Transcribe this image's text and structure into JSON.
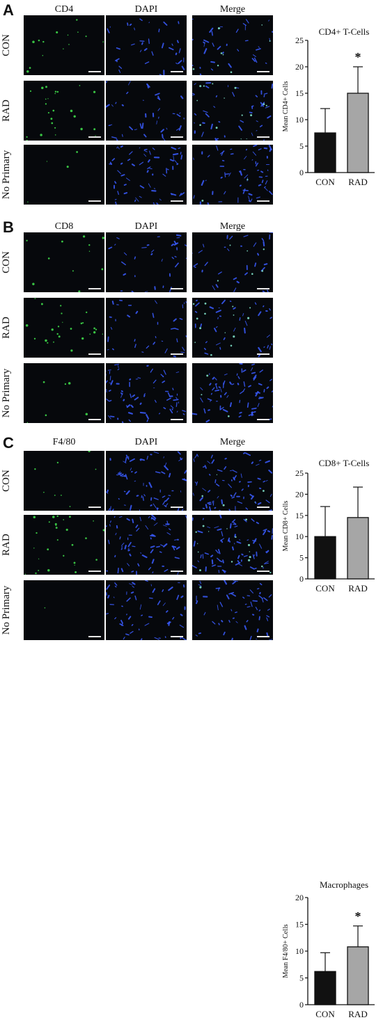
{
  "panels": [
    {
      "id": "A",
      "label": "A",
      "columns": [
        "CD4",
        "DAPI",
        "Merge"
      ],
      "rows": [
        "CON",
        "RAD",
        "No Primary"
      ],
      "stain_color": "#3fd94a",
      "dapi_color": "#3a5cff",
      "tile_density": [
        [
          0.2,
          0.5,
          0.5
        ],
        [
          0.35,
          0.55,
          0.6
        ],
        [
          0.05,
          0.85,
          0.85
        ]
      ],
      "chart": {
        "title": "CD4+ T-Cells",
        "ylabel": "Mean CD4+ Cells",
        "categories": [
          "CON",
          "RAD"
        ],
        "yticks": [
          0,
          5,
          10,
          15,
          20,
          25
        ],
        "significance": "*"
      }
    },
    {
      "id": "B",
      "label": "B",
      "columns": [
        "CD8",
        "DAPI",
        "Merge"
      ],
      "rows": [
        "CON",
        "RAD",
        "No Primary"
      ],
      "stain_color": "#3fd94a",
      "dapi_color": "#3a5cff",
      "tile_density": [
        [
          0.15,
          0.45,
          0.45
        ],
        [
          0.35,
          0.5,
          0.55
        ],
        [
          0.08,
          1.0,
          1.0
        ]
      ],
      "chart": {
        "title": "CD8+ T-Cells",
        "ylabel": "Mean CD8+ Cells",
        "categories": [
          "CON",
          "RAD"
        ],
        "yticks": [
          0,
          5,
          10,
          15,
          20,
          25
        ],
        "significance": ""
      }
    },
    {
      "id": "C",
      "label": "C",
      "columns": [
        "F4/80",
        "DAPI",
        "Merge"
      ],
      "rows": [
        "CON",
        "RAD",
        "No Primary"
      ],
      "stain_color": "#3fd94a",
      "dapi_color": "#3a5cff",
      "tile_density": [
        [
          0.12,
          1.0,
          1.0
        ],
        [
          0.4,
          1.0,
          1.0
        ],
        [
          0.02,
          0.8,
          0.8
        ]
      ],
      "chart": {
        "title": "Macrophages",
        "ylabel": "Mean F4/80+ Cells",
        "categories": [
          "CON",
          "RAD"
        ],
        "yticks": [
          0,
          5,
          10,
          15,
          20
        ],
        "significance": "*"
      }
    }
  ],
  "chart_data": [
    {
      "type": "bar",
      "title": "CD4+ T-Cells",
      "xlabel": "",
      "ylabel": "Mean CD4+ Cells",
      "categories": [
        "CON",
        "RAD"
      ],
      "values": [
        7.5,
        15.0
      ],
      "error": [
        4.6,
        5.0
      ],
      "colors": [
        "#111111",
        "#a6a6a6"
      ],
      "ylim": [
        0,
        25
      ],
      "annotations": [
        {
          "category": "RAD",
          "text": "*"
        }
      ]
    },
    {
      "type": "bar",
      "title": "CD8+ T-Cells",
      "xlabel": "",
      "ylabel": "Mean CD8+ Cells",
      "categories": [
        "CON",
        "RAD"
      ],
      "values": [
        10.0,
        14.5
      ],
      "error": [
        7.1,
        7.2
      ],
      "colors": [
        "#111111",
        "#a6a6a6"
      ],
      "ylim": [
        0,
        25
      ],
      "annotations": []
    },
    {
      "type": "bar",
      "title": "Macrophages",
      "xlabel": "",
      "ylabel": "Mean F4/80+ Cells",
      "categories": [
        "CON",
        "RAD"
      ],
      "values": [
        6.2,
        10.8
      ],
      "error": [
        3.5,
        3.9
      ],
      "colors": [
        "#111111",
        "#a6a6a6"
      ],
      "ylim": [
        0,
        20
      ],
      "annotations": [
        {
          "category": "RAD",
          "text": "*"
        }
      ]
    }
  ]
}
